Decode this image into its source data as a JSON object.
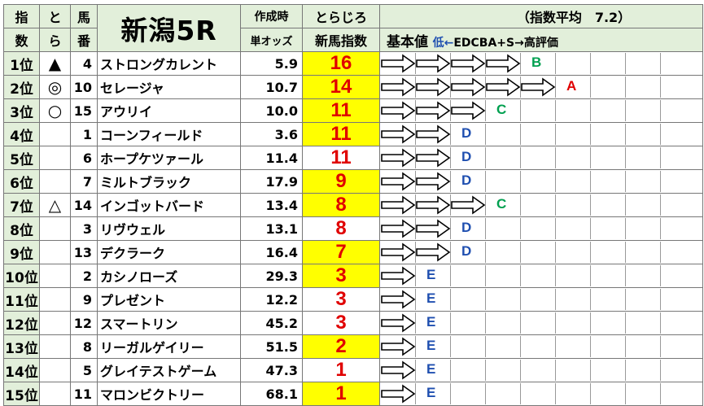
{
  "header": {
    "col_index": "指\n数",
    "col_index_a": "指",
    "col_index_b": "数",
    "col_tora_a": "と",
    "col_tora_b": "ら",
    "col_num_a": "馬",
    "col_num_b": "番",
    "race_title": "新潟5R",
    "col_odds_a": "作成時",
    "col_odds_b": "単オッズ",
    "col_idx_a": "とらじろ",
    "col_idx_b": "新馬指数",
    "avg_label": "（指数平均　7.2）",
    "kihon": "基本値",
    "scale_low": "低←",
    "scale_rest": "EDCBA+S→高評価"
  },
  "colors": {
    "header_bg": "#e2efda",
    "index_bg": "#ffff00",
    "index_text": "#e00000",
    "grade_A": "#e00000",
    "grade_B": "#00a050",
    "grade_C": "#00a050",
    "grade_D": "#1f4fb0",
    "grade_E": "#1f4fb0",
    "scale_low": "#1f4fb0"
  },
  "rows": [
    {
      "rank": "1位",
      "mark": "▲",
      "num": "4",
      "name": "ストロングカレント",
      "odds": "5.9",
      "index": "16",
      "hl": true,
      "arrows": 4,
      "grade": "B"
    },
    {
      "rank": "2位",
      "mark": "◎",
      "num": "10",
      "name": "セレージャ",
      "odds": "10.7",
      "index": "14",
      "hl": true,
      "arrows": 5,
      "grade": "A"
    },
    {
      "rank": "3位",
      "mark": "○",
      "num": "15",
      "name": "アウリイ",
      "odds": "10.0",
      "index": "11",
      "hl": true,
      "arrows": 3,
      "grade": "C"
    },
    {
      "rank": "4位",
      "mark": "",
      "num": "1",
      "name": "コーンフィールド",
      "odds": "3.6",
      "index": "11",
      "hl": true,
      "arrows": 2,
      "grade": "D"
    },
    {
      "rank": "5位",
      "mark": "",
      "num": "6",
      "name": "ホープケツァール",
      "odds": "11.4",
      "index": "11",
      "hl": false,
      "arrows": 2,
      "grade": "D"
    },
    {
      "rank": "6位",
      "mark": "",
      "num": "7",
      "name": "ミルトブラック",
      "odds": "17.9",
      "index": "9",
      "hl": true,
      "arrows": 2,
      "grade": "D"
    },
    {
      "rank": "7位",
      "mark": "△",
      "num": "14",
      "name": "インゴットバード",
      "odds": "13.4",
      "index": "8",
      "hl": true,
      "arrows": 3,
      "grade": "C"
    },
    {
      "rank": "8位",
      "mark": "",
      "num": "3",
      "name": "リヴウェル",
      "odds": "13.1",
      "index": "8",
      "hl": false,
      "arrows": 2,
      "grade": "D"
    },
    {
      "rank": "9位",
      "mark": "",
      "num": "13",
      "name": "デクラーク",
      "odds": "16.4",
      "index": "7",
      "hl": true,
      "arrows": 2,
      "grade": "D"
    },
    {
      "rank": "10位",
      "mark": "",
      "num": "2",
      "name": "カシノローズ",
      "odds": "29.3",
      "index": "3",
      "hl": true,
      "arrows": 1,
      "grade": "E"
    },
    {
      "rank": "11位",
      "mark": "",
      "num": "9",
      "name": "プレゼント",
      "odds": "12.2",
      "index": "3",
      "hl": false,
      "arrows": 1,
      "grade": "E"
    },
    {
      "rank": "12位",
      "mark": "",
      "num": "12",
      "name": "スマートリン",
      "odds": "45.2",
      "index": "3",
      "hl": false,
      "arrows": 1,
      "grade": "E"
    },
    {
      "rank": "13位",
      "mark": "",
      "num": "8",
      "name": "リーガルゲイリー",
      "odds": "51.5",
      "index": "2",
      "hl": true,
      "arrows": 1,
      "grade": "E"
    },
    {
      "rank": "14位",
      "mark": "",
      "num": "5",
      "name": "グレイテストゲーム",
      "odds": "47.3",
      "index": "1",
      "hl": false,
      "arrows": 1,
      "grade": "E"
    },
    {
      "rank": "15位",
      "mark": "",
      "num": "11",
      "name": "マロンビクトリー",
      "odds": "68.1",
      "index": "1",
      "hl": true,
      "arrows": 1,
      "grade": "E"
    }
  ]
}
